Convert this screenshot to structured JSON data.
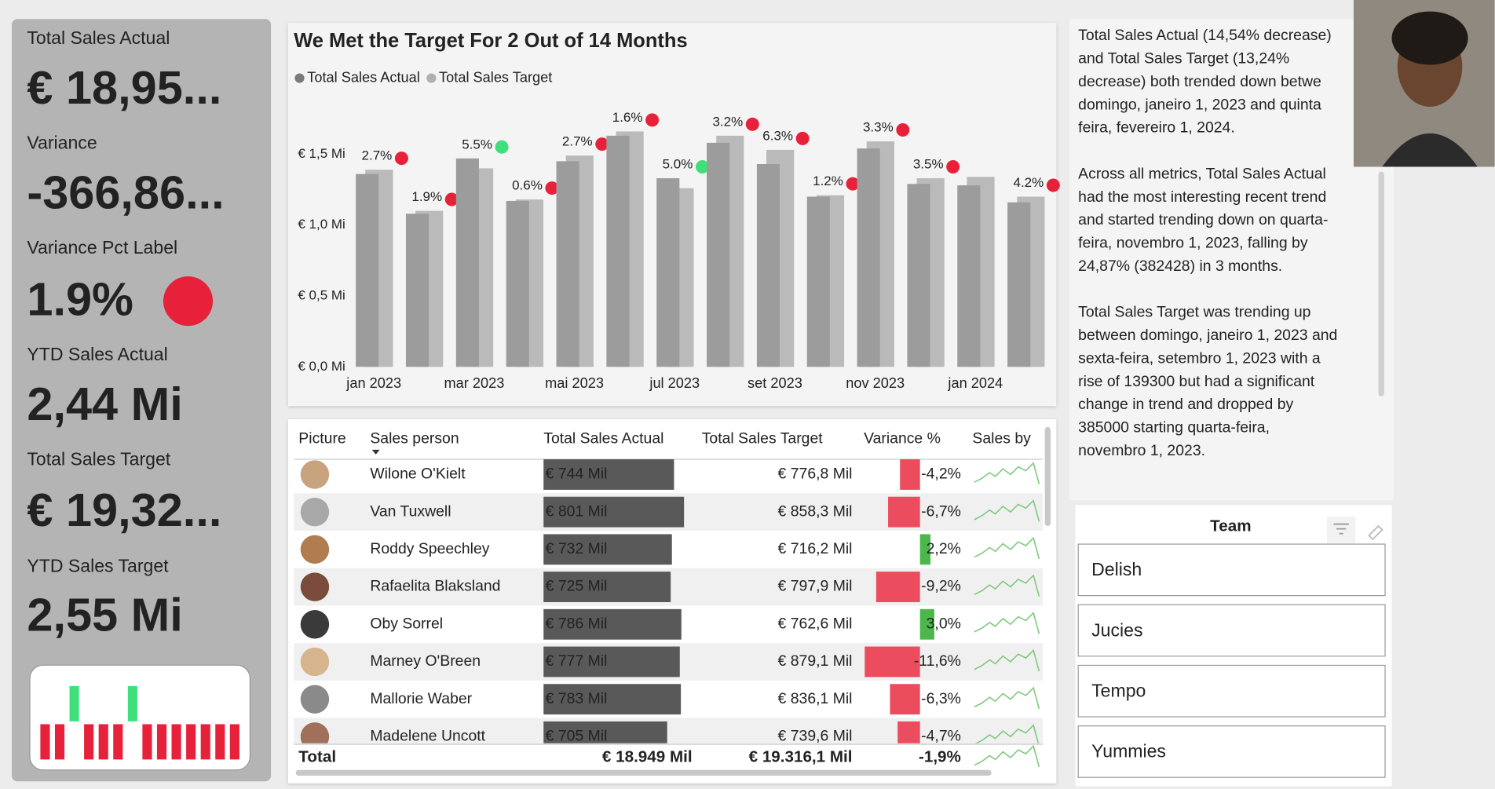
{
  "cards": [
    {
      "label": "Total Sales Actual",
      "value": "€ 18,95..."
    },
    {
      "label": "Variance",
      "value": "-366,86..."
    },
    {
      "label": "Variance Pct Label",
      "value": "1.9%"
    },
    {
      "label": "YTD Sales Actual",
      "value": "2,44 Mi"
    },
    {
      "label": "Total Sales Target",
      "value": "€ 19,32..."
    },
    {
      "label": "YTD Sales Target",
      "value": "2,55 Mi"
    }
  ],
  "chart_data": {
    "type": "bar",
    "title": "We Met the Target For 2 Out of 14 Months",
    "categories": [
      "jan 2023",
      null,
      "mar 2023",
      null,
      "mai 2023",
      null,
      "jul 2023",
      null,
      "set 2023",
      null,
      "nov 2023",
      null,
      "jan 2024",
      null
    ],
    "series": [
      {
        "name": "Total Sales Actual",
        "color": "#9c9c9c",
        "legend_color": "#7a7a7a",
        "values": [
          1.36,
          1.08,
          1.47,
          1.17,
          1.45,
          1.63,
          1.33,
          1.58,
          1.43,
          1.2,
          1.54,
          1.29,
          1.28,
          1.16
        ]
      },
      {
        "name": "Total Sales Target",
        "color": "#bababa",
        "legend_color": "#b0b0b0",
        "values": [
          1.39,
          1.1,
          1.4,
          1.18,
          1.49,
          1.66,
          1.26,
          1.63,
          1.53,
          1.21,
          1.59,
          1.33,
          1.34,
          1.2
        ]
      }
    ],
    "annotations": [
      "2.7%",
      "1.9%",
      "5.5%",
      "0.6%",
      "2.7%",
      "1.6%",
      "5.0%",
      "3.2%",
      "6.3%",
      "1.2%",
      "3.3%",
      "3.5%",
      null,
      "4.2%"
    ],
    "annotation_colors": [
      "#e8213a",
      "#e8213a",
      "#3fe07c",
      "#e8213a",
      "#e8213a",
      "#e8213a",
      "#3fe07c",
      "#e8213a",
      "#e8213a",
      "#e8213a",
      "#e8213a",
      "#e8213a",
      "#e8213a",
      "#e8213a"
    ],
    "ylim": [
      0,
      1.7
    ],
    "yticks": [
      {
        "value": 0,
        "label": "€ 0,0 Mi"
      },
      {
        "value": 0.5,
        "label": "€ 0,5 Mi"
      },
      {
        "value": 1.0,
        "label": "€ 1,0 Mi"
      },
      {
        "value": 1.5,
        "label": "€ 1,5 Mi"
      }
    ]
  },
  "table": {
    "columns": [
      "Picture",
      "Sales person",
      "Total Sales Actual",
      "Total Sales Target",
      "Variance %",
      "Sales by"
    ],
    "rows": [
      {
        "name": "Wilone O'Kielt",
        "actual": {
          "value": 744,
          "label": "€ 744 Mil"
        },
        "target": "€ 776,8 Mil",
        "variance": {
          "value": -4.2,
          "label": "-4,2%"
        }
      },
      {
        "name": "Van Tuxwell",
        "actual": {
          "value": 801,
          "label": "€ 801 Mil"
        },
        "target": "€ 858,3 Mil",
        "variance": {
          "value": -6.7,
          "label": "-6,7%"
        }
      },
      {
        "name": "Roddy Speechley",
        "actual": {
          "value": 732,
          "label": "€ 732 Mil"
        },
        "target": "€ 716,2 Mil",
        "variance": {
          "value": 2.2,
          "label": "2,2%"
        }
      },
      {
        "name": "Rafaelita Blaksland",
        "actual": {
          "value": 725,
          "label": "€ 725 Mil"
        },
        "target": "€ 797,9 Mil",
        "variance": {
          "value": -9.2,
          "label": "-9,2%"
        }
      },
      {
        "name": "Oby Sorrel",
        "actual": {
          "value": 786,
          "label": "€ 786 Mil"
        },
        "target": "€ 762,6 Mil",
        "variance": {
          "value": 3.0,
          "label": "3,0%"
        }
      },
      {
        "name": "Marney O'Breen",
        "actual": {
          "value": 777,
          "label": "€ 777 Mil"
        },
        "target": "€ 879,1 Mil",
        "variance": {
          "value": -11.6,
          "label": "-11,6%"
        }
      },
      {
        "name": "Mallorie Waber",
        "actual": {
          "value": 783,
          "label": "€ 783 Mil"
        },
        "target": "€ 836,1 Mil",
        "variance": {
          "value": -6.3,
          "label": "-6,3%"
        }
      },
      {
        "name": "Madelene Uncott",
        "actual": {
          "value": 705,
          "label": "€ 705 Mil"
        },
        "target": "€ 739,6 Mil",
        "variance": {
          "value": -4.7,
          "label": "-4,7%"
        }
      }
    ],
    "total": {
      "label": "Total",
      "actual": "€ 18.949 Mil",
      "target": "€ 19.316,1 Mil",
      "variance": "-1,9%"
    }
  },
  "narrative": [
    [
      "Total Sales Actual (14,54% decrease)",
      "and Total Sales Target (13,24%",
      "decrease) both trended down betwe",
      "domingo, janeiro 1, 2023 and quinta",
      "feira, fevereiro 1, 2024."
    ],
    [
      "Across all metrics, Total Sales Actual",
      "had the most interesting recent trend",
      "and started trending down on quarta-",
      "feira, novembro 1, 2023, falling by",
      "24,87% (382428) in 3 months."
    ],
    [
      "Total Sales Target was trending up",
      "between domingo, janeiro 1, 2023 and",
      "sexta-feira, setembro 1, 2023 with a",
      "rise of 139300 but had a significant",
      "change in trend and dropped by",
      "385000 starting quarta-feira,",
      "novembro 1, 2023."
    ]
  ],
  "slicer": {
    "title": "Team",
    "items": [
      "Delish",
      "Jucies",
      "Tempo",
      "Yummies"
    ]
  }
}
